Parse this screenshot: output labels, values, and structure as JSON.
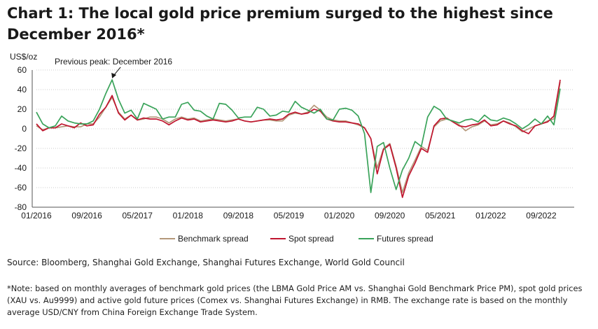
{
  "title": "Chart 1: The local gold price premium surged to the highest since December 2016*",
  "source": "Source: Bloomberg, Shanghai Gold Exchange, Shanghai Futures Exchange, World Gold Council",
  "note": "*Note: based on monthly averages of benchmark gold prices (the LBMA Gold Price AM vs. Shanghai Gold Benchmark Price PM), spot gold prices (XAU vs. Au9999) and active gold future prices (Comex vs. Shanghai Futures Exchange) in RMB. The exchange rate is based on the monthly average USD/CNY from China Foreign Exchange Trade System.",
  "chart_data": {
    "type": "line",
    "ylabel": "US$/oz",
    "ylim": [
      -80,
      60
    ],
    "yticks": [
      60,
      40,
      20,
      0,
      -20,
      -40,
      -60,
      -80
    ],
    "xticks": [
      "01/2016",
      "09/2016",
      "05/2017",
      "01/2018",
      "09/2018",
      "05/2019",
      "01/2020",
      "09/2020",
      "05/2021",
      "01/2022",
      "09/2022"
    ],
    "x_start": "01/2016",
    "x_end": "09/2022",
    "grid": "horizontal dotted",
    "legend": "bottom",
    "annotation": "Previous peak: December 2016",
    "series": [
      {
        "name": "Benchmark spread",
        "color": "#b4987a",
        "values": [
          3,
          -1,
          1,
          1,
          2,
          3,
          2,
          2,
          5,
          5,
          12,
          22,
          32,
          17,
          10,
          14,
          9,
          10,
          12,
          12,
          10,
          6,
          10,
          12,
          10,
          11,
          8,
          9,
          10,
          9,
          8,
          9,
          10,
          8,
          7,
          8,
          9,
          9,
          8,
          8,
          14,
          16,
          15,
          17,
          24,
          19,
          12,
          9,
          8,
          8,
          6,
          4,
          1,
          -10,
          -40,
          -20,
          -15,
          -38,
          -65,
          -45,
          -32,
          -18,
          -22,
          2,
          8,
          10,
          8,
          4,
          -2,
          2,
          4,
          8,
          4,
          5,
          8,
          6,
          2,
          -3,
          0,
          3,
          5,
          8,
          10,
          48
        ]
      },
      {
        "name": "Spot spread",
        "color": "#c0152f",
        "values": [
          5,
          -2,
          1,
          1,
          5,
          3,
          1,
          6,
          3,
          4,
          15,
          22,
          34,
          16,
          9,
          14,
          9,
          11,
          10,
          10,
          8,
          4,
          8,
          11,
          9,
          10,
          7,
          8,
          9,
          8,
          7,
          8,
          10,
          8,
          7,
          8,
          9,
          10,
          9,
          10,
          15,
          17,
          15,
          16,
          20,
          18,
          10,
          8,
          7,
          7,
          6,
          5,
          1,
          -10,
          -46,
          -21,
          -16,
          -40,
          -70,
          -48,
          -35,
          -20,
          -24,
          3,
          10,
          11,
          7,
          3,
          2,
          4,
          5,
          9,
          3,
          4,
          8,
          5,
          3,
          -2,
          -5,
          3,
          5,
          7,
          13,
          50
        ]
      },
      {
        "name": "Futures spread",
        "color": "#3aa35a",
        "values": [
          17,
          5,
          1,
          3,
          13,
          8,
          6,
          5,
          5,
          8,
          20,
          36,
          50,
          30,
          16,
          19,
          10,
          26,
          23,
          20,
          10,
          12,
          12,
          25,
          27,
          19,
          18,
          13,
          10,
          26,
          25,
          19,
          11,
          12,
          12,
          22,
          20,
          13,
          14,
          18,
          17,
          28,
          22,
          19,
          16,
          20,
          10,
          9,
          20,
          21,
          19,
          13,
          -5,
          -65,
          -18,
          -14,
          -40,
          -62,
          -42,
          -30,
          -13,
          -18,
          12,
          23,
          19,
          10,
          8,
          6,
          9,
          10,
          7,
          14,
          9,
          8,
          11,
          9,
          5,
          0,
          4,
          10,
          5,
          13,
          4,
          41
        ]
      }
    ]
  }
}
